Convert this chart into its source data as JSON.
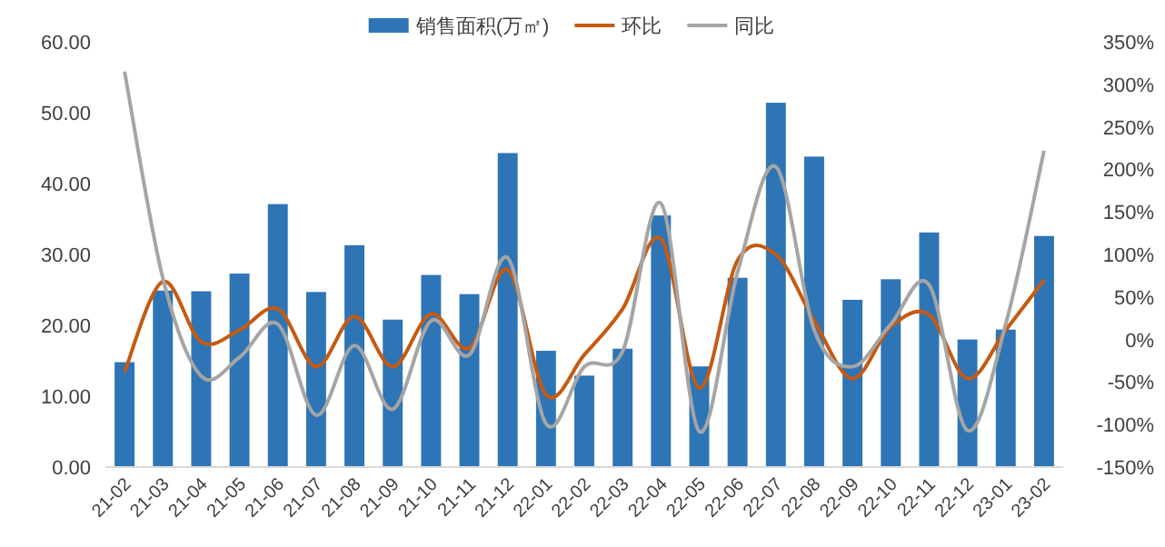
{
  "chart_data": {
    "type": "bar",
    "categories": [
      "21-02",
      "21-03",
      "21-04",
      "21-05",
      "21-06",
      "21-07",
      "21-08",
      "21-09",
      "21-10",
      "21-11",
      "21-12",
      "22-01",
      "22-02",
      "22-03",
      "22-04",
      "22-05",
      "22-06",
      "22-07",
      "22-08",
      "22-09",
      "22-10",
      "22-11",
      "22-12",
      "23-01",
      "23-02"
    ],
    "series": [
      {
        "name": "销售面积(万㎡)",
        "color": "#2e75b6",
        "values": [
          14.8,
          24.9,
          24.8,
          27.3,
          37.1,
          24.7,
          31.3,
          20.8,
          27.1,
          24.4,
          44.3,
          16.4,
          12.9,
          16.7,
          35.5,
          14.2,
          26.7,
          51.4,
          43.8,
          23.6,
          26.5,
          33.1,
          18.0,
          19.4,
          32.6
        ]
      },
      {
        "name": "环比",
        "type": "line",
        "axis": "y2",
        "color": "#c55a11",
        "values": [
          -38,
          68,
          -3,
          11,
          36,
          -32,
          27,
          -32,
          30,
          -10,
          82,
          -65,
          -18,
          36,
          118,
          -57,
          93,
          100,
          22,
          -46,
          15,
          29,
          -46,
          11,
          70
        ]
      },
      {
        "name": "同比",
        "type": "line",
        "axis": "y2",
        "color": "#a5a5a5",
        "values": [
          315,
          72,
          -43,
          -21,
          18,
          -89,
          -7,
          -82,
          22,
          -18,
          96,
          -99,
          -32,
          -14,
          160,
          -108,
          79,
          203,
          11,
          -32,
          18,
          64,
          -107,
          18,
          222
        ]
      }
    ],
    "ylim": [
      0,
      60
    ],
    "yticks": [
      {
        "value": 0,
        "label": "0.00"
      },
      {
        "value": 10,
        "label": "10.00"
      },
      {
        "value": 20,
        "label": "20.00"
      },
      {
        "value": 30,
        "label": "30.00"
      },
      {
        "value": 40,
        "label": "40.00"
      },
      {
        "value": 50,
        "label": "50.00"
      },
      {
        "value": 60,
        "label": "60.00"
      }
    ],
    "y2lim": [
      -150,
      350
    ],
    "y2ticks": [
      {
        "value": -150,
        "label": "-150%"
      },
      {
        "value": -100,
        "label": "-100%"
      },
      {
        "value": -50,
        "label": "-50%"
      },
      {
        "value": 0,
        "label": "0%"
      },
      {
        "value": 50,
        "label": "50%"
      },
      {
        "value": 100,
        "label": "100%"
      },
      {
        "value": 150,
        "label": "150%"
      },
      {
        "value": 200,
        "label": "200%"
      },
      {
        "value": 250,
        "label": "250%"
      },
      {
        "value": 300,
        "label": "300%"
      },
      {
        "value": 350,
        "label": "350%"
      }
    ],
    "legend": "top",
    "grid": false
  }
}
